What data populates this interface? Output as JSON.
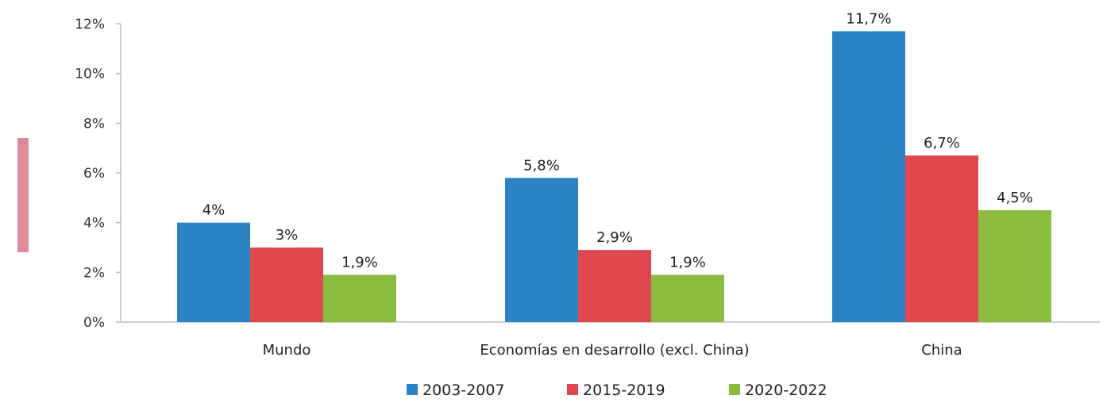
{
  "chart_data": {
    "type": "bar",
    "categories": [
      "Mundo",
      "Economías en desarrollo (excl. China)",
      "China"
    ],
    "series": [
      {
        "name": "2003-2007",
        "values": [
          4.0,
          5.8,
          11.7
        ],
        "labels": [
          "4%",
          "5,8%",
          "11,7%"
        ],
        "color": "#2b83c6"
      },
      {
        "name": "2015-2019",
        "values": [
          3.0,
          2.9,
          6.7
        ],
        "labels": [
          "3%",
          "2,9%",
          "6,7%"
        ],
        "color": "#e0474c"
      },
      {
        "name": "2020-2022",
        "values": [
          1.9,
          1.9,
          4.5
        ],
        "labels": [
          "1,9%",
          "1,9%",
          "4,5%"
        ],
        "color": "#8cbc3f"
      }
    ],
    "yticks": [
      0,
      2,
      4,
      6,
      8,
      10,
      12
    ],
    "ytick_labels": [
      "0%",
      "2%",
      "4%",
      "6%",
      "8%",
      "10%",
      "12%"
    ],
    "ylim": [
      0,
      12
    ],
    "grid": false,
    "legend_position": "bottom",
    "title": "",
    "xlabel": "",
    "ylabel": ""
  },
  "decoration": {
    "left_marker_color": "#e0899b"
  }
}
